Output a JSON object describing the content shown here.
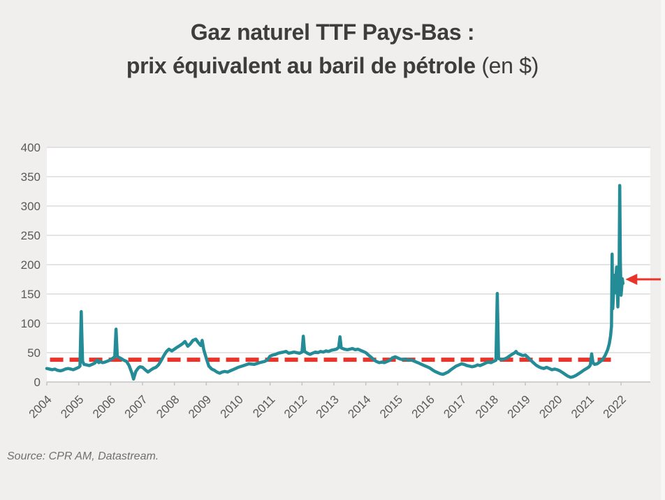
{
  "title": {
    "line1": "Gaz naturel TTF Pays-Bas :",
    "line2_bold": "prix équivalent au baril de pétrole",
    "line2_normal": " (en $)"
  },
  "source": "Source: CPR AM, Datastream.",
  "colors": {
    "background": "#f0efee",
    "plot_background": "#ffffff",
    "gridline": "#dcdbda",
    "axis_line": "#c4c4c4",
    "axis_label": "#595959",
    "title_text": "#3d3d3d",
    "series": "#238c96",
    "reference_line": "#e8342a",
    "arrow": "#e8342a",
    "source_text": "#6f6f6f"
  },
  "chart_data": {
    "type": "line",
    "title": "Gaz naturel TTF Pays-Bas : prix équivalent au baril de pétrole (en $)",
    "xlabel": "",
    "ylabel": "",
    "xlim": [
      2004,
      2022.92
    ],
    "ylim": [
      0,
      400
    ],
    "x_ticks": [
      2004,
      2005,
      2006,
      2007,
      2008,
      2009,
      2010,
      2011,
      2012,
      2013,
      2014,
      2015,
      2016,
      2017,
      2018,
      2019,
      2020,
      2021,
      2022
    ],
    "y_ticks": [
      0,
      50,
      100,
      150,
      200,
      250,
      300,
      350,
      400
    ],
    "grid": "horizontal-only",
    "legend": "none",
    "reference_line": {
      "value": 38,
      "style": "dashed",
      "x_start": 2004.1,
      "x_end": 2021.75,
      "color": "#e8342a"
    },
    "annotation_arrow": {
      "x": 2022.05,
      "value": 175,
      "direction": "points-left-at-last-value",
      "color": "#e8342a"
    },
    "series": [
      {
        "color": "#238c96",
        "points": [
          [
            2004.0,
            23
          ],
          [
            2004.08,
            22
          ],
          [
            2004.17,
            21
          ],
          [
            2004.25,
            22
          ],
          [
            2004.33,
            20
          ],
          [
            2004.42,
            19
          ],
          [
            2004.5,
            20
          ],
          [
            2004.58,
            22
          ],
          [
            2004.67,
            23
          ],
          [
            2004.75,
            22
          ],
          [
            2004.83,
            21
          ],
          [
            2004.92,
            23
          ],
          [
            2005.0,
            25
          ],
          [
            2005.04,
            27
          ],
          [
            2005.08,
            120
          ],
          [
            2005.12,
            35
          ],
          [
            2005.17,
            30
          ],
          [
            2005.25,
            29
          ],
          [
            2005.33,
            28
          ],
          [
            2005.42,
            30
          ],
          [
            2005.5,
            32
          ],
          [
            2005.58,
            37
          ],
          [
            2005.63,
            33
          ],
          [
            2005.67,
            35
          ],
          [
            2005.75,
            33
          ],
          [
            2005.83,
            34
          ],
          [
            2005.92,
            36
          ],
          [
            2006.0,
            38
          ],
          [
            2006.08,
            41
          ],
          [
            2006.13,
            43
          ],
          [
            2006.17,
            90
          ],
          [
            2006.21,
            44
          ],
          [
            2006.25,
            42
          ],
          [
            2006.33,
            40
          ],
          [
            2006.42,
            37
          ],
          [
            2006.5,
            35
          ],
          [
            2006.58,
            28
          ],
          [
            2006.67,
            15
          ],
          [
            2006.72,
            5
          ],
          [
            2006.79,
            18
          ],
          [
            2006.87,
            24
          ],
          [
            2006.92,
            26
          ],
          [
            2007.0,
            25
          ],
          [
            2007.08,
            21
          ],
          [
            2007.17,
            17
          ],
          [
            2007.25,
            20
          ],
          [
            2007.33,
            23
          ],
          [
            2007.42,
            25
          ],
          [
            2007.5,
            29
          ],
          [
            2007.58,
            36
          ],
          [
            2007.67,
            45
          ],
          [
            2007.75,
            52
          ],
          [
            2007.83,
            56
          ],
          [
            2007.92,
            53
          ],
          [
            2008.0,
            56
          ],
          [
            2008.08,
            59
          ],
          [
            2008.17,
            62
          ],
          [
            2008.25,
            65
          ],
          [
            2008.33,
            69
          ],
          [
            2008.42,
            61
          ],
          [
            2008.5,
            65
          ],
          [
            2008.58,
            71
          ],
          [
            2008.67,
            73
          ],
          [
            2008.75,
            67
          ],
          [
            2008.83,
            62
          ],
          [
            2008.87,
            71
          ],
          [
            2008.92,
            55
          ],
          [
            2009.0,
            40
          ],
          [
            2009.08,
            27
          ],
          [
            2009.17,
            22
          ],
          [
            2009.25,
            20
          ],
          [
            2009.33,
            17
          ],
          [
            2009.42,
            15
          ],
          [
            2009.5,
            17
          ],
          [
            2009.58,
            18
          ],
          [
            2009.67,
            17
          ],
          [
            2009.75,
            19
          ],
          [
            2009.83,
            21
          ],
          [
            2009.92,
            23
          ],
          [
            2010.0,
            25
          ],
          [
            2010.17,
            28
          ],
          [
            2010.33,
            31
          ],
          [
            2010.5,
            30
          ],
          [
            2010.67,
            33
          ],
          [
            2010.83,
            35
          ],
          [
            2010.92,
            38
          ],
          [
            2011.0,
            44
          ],
          [
            2011.08,
            46
          ],
          [
            2011.17,
            47
          ],
          [
            2011.25,
            49
          ],
          [
            2011.33,
            50
          ],
          [
            2011.42,
            51
          ],
          [
            2011.5,
            52
          ],
          [
            2011.58,
            49
          ],
          [
            2011.67,
            50
          ],
          [
            2011.75,
            51
          ],
          [
            2011.83,
            50
          ],
          [
            2011.92,
            49
          ],
          [
            2012.0,
            51
          ],
          [
            2012.04,
            78
          ],
          [
            2012.08,
            52
          ],
          [
            2012.17,
            49
          ],
          [
            2012.25,
            47
          ],
          [
            2012.33,
            49
          ],
          [
            2012.42,
            51
          ],
          [
            2012.5,
            50
          ],
          [
            2012.58,
            52
          ],
          [
            2012.67,
            51
          ],
          [
            2012.75,
            53
          ],
          [
            2012.83,
            52
          ],
          [
            2012.92,
            54
          ],
          [
            2013.0,
            55
          ],
          [
            2013.08,
            56
          ],
          [
            2013.15,
            59
          ],
          [
            2013.19,
            77
          ],
          [
            2013.23,
            58
          ],
          [
            2013.33,
            56
          ],
          [
            2013.42,
            55
          ],
          [
            2013.5,
            56
          ],
          [
            2013.58,
            57
          ],
          [
            2013.67,
            55
          ],
          [
            2013.75,
            56
          ],
          [
            2013.83,
            54
          ],
          [
            2013.92,
            52
          ],
          [
            2014.0,
            50
          ],
          [
            2014.08,
            46
          ],
          [
            2014.17,
            42
          ],
          [
            2014.25,
            38
          ],
          [
            2014.33,
            35
          ],
          [
            2014.42,
            33
          ],
          [
            2014.5,
            34
          ],
          [
            2014.58,
            33
          ],
          [
            2014.67,
            35
          ],
          [
            2014.75,
            37
          ],
          [
            2014.83,
            41
          ],
          [
            2014.92,
            43
          ],
          [
            2015.0,
            41
          ],
          [
            2015.08,
            39
          ],
          [
            2015.17,
            38
          ],
          [
            2015.25,
            39
          ],
          [
            2015.33,
            37
          ],
          [
            2015.42,
            38
          ],
          [
            2015.5,
            36
          ],
          [
            2015.58,
            34
          ],
          [
            2015.67,
            32
          ],
          [
            2015.75,
            30
          ],
          [
            2015.83,
            28
          ],
          [
            2015.92,
            26
          ],
          [
            2016.0,
            24
          ],
          [
            2016.08,
            21
          ],
          [
            2016.17,
            18
          ],
          [
            2016.25,
            16
          ],
          [
            2016.33,
            14
          ],
          [
            2016.42,
            13
          ],
          [
            2016.5,
            15
          ],
          [
            2016.58,
            17
          ],
          [
            2016.67,
            21
          ],
          [
            2016.75,
            24
          ],
          [
            2016.83,
            27
          ],
          [
            2016.92,
            29
          ],
          [
            2017.0,
            31
          ],
          [
            2017.08,
            30
          ],
          [
            2017.17,
            28
          ],
          [
            2017.25,
            27
          ],
          [
            2017.33,
            26
          ],
          [
            2017.42,
            27
          ],
          [
            2017.5,
            29
          ],
          [
            2017.58,
            28
          ],
          [
            2017.67,
            30
          ],
          [
            2017.75,
            32
          ],
          [
            2017.83,
            34
          ],
          [
            2017.92,
            33
          ],
          [
            2018.0,
            35
          ],
          [
            2018.08,
            37
          ],
          [
            2018.12,
            151
          ],
          [
            2018.16,
            40
          ],
          [
            2018.25,
            38
          ],
          [
            2018.33,
            39
          ],
          [
            2018.42,
            41
          ],
          [
            2018.5,
            44
          ],
          [
            2018.58,
            47
          ],
          [
            2018.67,
            50
          ],
          [
            2018.71,
            52
          ],
          [
            2018.75,
            49
          ],
          [
            2018.83,
            47
          ],
          [
            2018.92,
            45
          ],
          [
            2019.0,
            46
          ],
          [
            2019.08,
            42
          ],
          [
            2019.17,
            37
          ],
          [
            2019.25,
            33
          ],
          [
            2019.33,
            29
          ],
          [
            2019.42,
            26
          ],
          [
            2019.5,
            24
          ],
          [
            2019.58,
            23
          ],
          [
            2019.67,
            25
          ],
          [
            2019.75,
            23
          ],
          [
            2019.83,
            21
          ],
          [
            2019.92,
            22
          ],
          [
            2020.0,
            21
          ],
          [
            2020.08,
            19
          ],
          [
            2020.17,
            16
          ],
          [
            2020.25,
            13
          ],
          [
            2020.33,
            10
          ],
          [
            2020.42,
            8
          ],
          [
            2020.5,
            9
          ],
          [
            2020.58,
            11
          ],
          [
            2020.67,
            14
          ],
          [
            2020.75,
            17
          ],
          [
            2020.83,
            20
          ],
          [
            2020.92,
            23
          ],
          [
            2021.0,
            26
          ],
          [
            2021.04,
            29
          ],
          [
            2021.08,
            48
          ],
          [
            2021.12,
            33
          ],
          [
            2021.17,
            30
          ],
          [
            2021.25,
            31
          ],
          [
            2021.33,
            34
          ],
          [
            2021.42,
            38
          ],
          [
            2021.5,
            45
          ],
          [
            2021.58,
            55
          ],
          [
            2021.63,
            65
          ],
          [
            2021.67,
            78
          ],
          [
            2021.7,
            95
          ],
          [
            2021.72,
            218
          ],
          [
            2021.74,
            125
          ],
          [
            2021.76,
            145
          ],
          [
            2021.78,
            168
          ],
          [
            2021.8,
            182
          ],
          [
            2021.82,
            152
          ],
          [
            2021.84,
            176
          ],
          [
            2021.86,
            196
          ],
          [
            2021.88,
            162
          ],
          [
            2021.9,
            128
          ],
          [
            2021.92,
            168
          ],
          [
            2021.94,
            188
          ],
          [
            2021.96,
            335
          ],
          [
            2021.98,
            205
          ],
          [
            2022.0,
            148
          ],
          [
            2022.02,
            160
          ],
          [
            2022.04,
            176
          ],
          [
            2022.06,
            168
          ]
        ]
      }
    ]
  }
}
